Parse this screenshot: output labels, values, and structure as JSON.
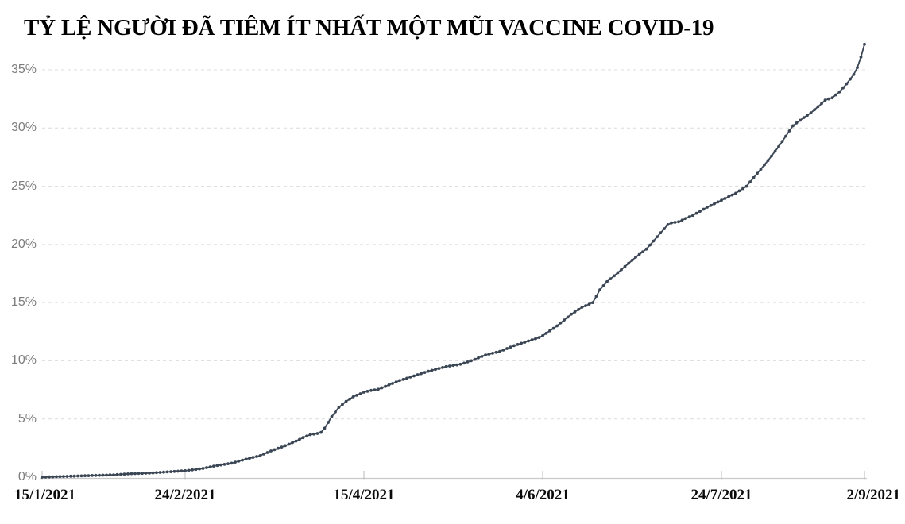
{
  "title": "TỶ LỆ NGƯỜI ĐÃ TIÊM ÍT NHẤT MỘT MŨI VACCINE COVID-19",
  "colors": {
    "line": "#3b4655",
    "marker": "#3b4655",
    "grid": "#dcdcdc",
    "axis": "#c9c9c9",
    "tick": "#b9b9b9",
    "y_label": "#7d7d7d",
    "x_label": "#0a0a0a",
    "title": "#000000",
    "background": "#ffffff"
  },
  "chart_data": {
    "type": "line",
    "title": "TỶ LỆ NGƯỜI ĐÃ TIÊM ÍT NHẤT MỘT MŨI VACCINE COVID-19",
    "xlabel": "",
    "ylabel": "",
    "legend": "none",
    "grid": "horizontal dashed",
    "marker": "dot",
    "ylim": [
      0,
      37.5
    ],
    "y_ticks": [
      0,
      5,
      10,
      15,
      20,
      25,
      30,
      35
    ],
    "y_tick_labels": [
      "0%",
      "5%",
      "10%",
      "15%",
      "20%",
      "25%",
      "30%",
      "35%"
    ],
    "x_tick_labels": [
      "15/1/2021",
      "24/2/2021",
      "15/4/2021",
      "4/6/2021",
      "24/7/2021",
      "2/9/2021"
    ],
    "x_range": [
      "15/1/2021",
      "2/9/2021"
    ],
    "unit": "%",
    "points": [
      [
        "15/1/2021",
        0.0
      ],
      [
        "20/1/2021",
        0.05
      ],
      [
        "25/1/2021",
        0.1
      ],
      [
        "30/1/2021",
        0.15
      ],
      [
        "4/2/2021",
        0.2
      ],
      [
        "9/2/2021",
        0.3
      ],
      [
        "14/2/2021",
        0.35
      ],
      [
        "19/2/2021",
        0.45
      ],
      [
        "24/2/2021",
        0.55
      ],
      [
        "1/3/2021",
        0.75
      ],
      [
        "4/3/2021",
        0.95
      ],
      [
        "9/3/2021",
        1.2
      ],
      [
        "13/3/2021",
        1.55
      ],
      [
        "17/3/2021",
        1.85
      ],
      [
        "20/3/2021",
        2.25
      ],
      [
        "24/3/2021",
        2.7
      ],
      [
        "27/3/2021",
        3.1
      ],
      [
        "29/3/2021",
        3.4
      ],
      [
        "31/3/2021",
        3.65
      ],
      [
        "2/4/2021",
        3.75
      ],
      [
        "3/4/2021",
        3.85
      ],
      [
        "4/4/2021",
        4.2
      ],
      [
        "5/4/2021",
        4.7
      ],
      [
        "6/4/2021",
        5.2
      ],
      [
        "7/4/2021",
        5.6
      ],
      [
        "8/4/2021",
        6.0
      ],
      [
        "10/4/2021",
        6.5
      ],
      [
        "12/4/2021",
        6.9
      ],
      [
        "15/4/2021",
        7.3
      ],
      [
        "17/4/2021",
        7.45
      ],
      [
        "19/4/2021",
        7.55
      ],
      [
        "21/4/2021",
        7.8
      ],
      [
        "25/4/2021",
        8.3
      ],
      [
        "29/4/2021",
        8.7
      ],
      [
        "3/5/2021",
        9.1
      ],
      [
        "8/5/2021",
        9.5
      ],
      [
        "12/5/2021",
        9.7
      ],
      [
        "15/5/2021",
        10.0
      ],
      [
        "19/5/2021",
        10.5
      ],
      [
        "23/5/2021",
        10.8
      ],
      [
        "27/5/2021",
        11.3
      ],
      [
        "30/5/2021",
        11.6
      ],
      [
        "3/6/2021",
        12.0
      ],
      [
        "4/6/2021",
        12.15
      ],
      [
        "8/6/2021",
        13.0
      ],
      [
        "12/6/2021",
        14.0
      ],
      [
        "15/6/2021",
        14.6
      ],
      [
        "18/6/2021",
        15.0
      ],
      [
        "20/6/2021",
        16.1
      ],
      [
        "22/6/2021",
        16.8
      ],
      [
        "24/6/2021",
        17.3
      ],
      [
        "27/6/2021",
        18.1
      ],
      [
        "30/6/2021",
        18.9
      ],
      [
        "3/7/2021",
        19.6
      ],
      [
        "5/7/2021",
        20.3
      ],
      [
        "7/7/2021",
        21.0
      ],
      [
        "9/7/2021",
        21.7
      ],
      [
        "10/7/2021",
        21.85
      ],
      [
        "12/7/2021",
        21.95
      ],
      [
        "16/7/2021",
        22.5
      ],
      [
        "20/7/2021",
        23.2
      ],
      [
        "24/7/2021",
        23.8
      ],
      [
        "28/7/2021",
        24.4
      ],
      [
        "31/7/2021",
        25.0
      ],
      [
        "3/8/2021",
        26.1
      ],
      [
        "6/8/2021",
        27.2
      ],
      [
        "9/8/2021",
        28.4
      ],
      [
        "11/8/2021",
        29.3
      ],
      [
        "13/8/2021",
        30.2
      ],
      [
        "16/8/2021",
        30.9
      ],
      [
        "18/8/2021",
        31.3
      ],
      [
        "21/8/2021",
        32.1
      ],
      [
        "22/8/2021",
        32.4
      ],
      [
        "24/8/2021",
        32.6
      ],
      [
        "26/8/2021",
        33.1
      ],
      [
        "28/8/2021",
        33.8
      ],
      [
        "30/8/2021",
        34.6
      ],
      [
        "31/8/2021",
        35.2
      ],
      [
        "1/9/2021",
        36.1
      ],
      [
        "2/9/2021",
        37.2
      ]
    ]
  }
}
